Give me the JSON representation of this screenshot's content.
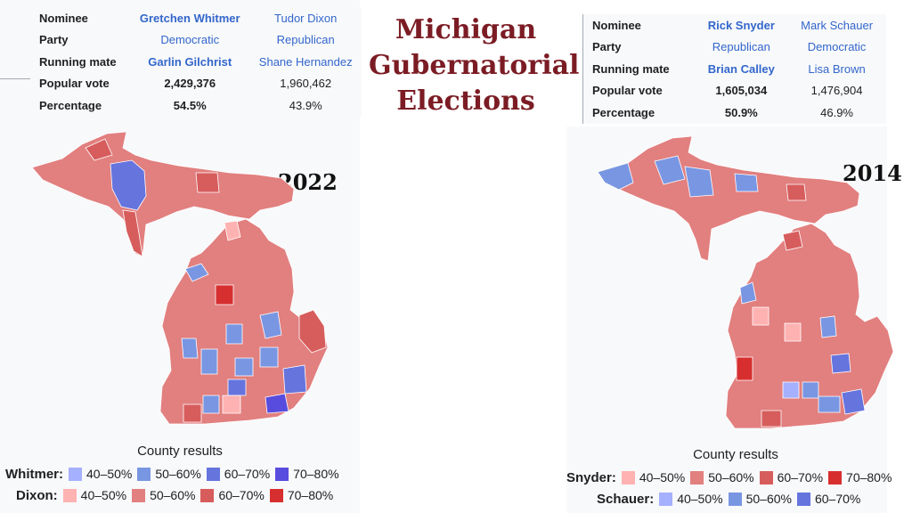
{
  "title": [
    "Michigan",
    "Gubernatorial",
    "Elections"
  ],
  "left": {
    "year": "2022",
    "infobox": {
      "rows": [
        {
          "label": "Nominee",
          "c1": "Gretchen Whitmer",
          "c2": "Tudor Dixon"
        },
        {
          "label": "Party",
          "c1": "Democratic",
          "c2": "Republican"
        },
        {
          "label": "Running mate",
          "c1": "Garlin Gilchrist",
          "c2": "Shane Hernandez"
        },
        {
          "label": "Popular vote",
          "c1": "2,429,376",
          "c2": "1,960,462"
        },
        {
          "label": "Percentage",
          "c1": "54.5%",
          "c2": "43.9%"
        }
      ]
    },
    "legend": {
      "title": "County results",
      "rows": [
        {
          "candidate": "Whitmer:",
          "items": [
            {
              "label": "40–50%",
              "color": "#a5b0ff"
            },
            {
              "label": "50–60%",
              "color": "#7996e2"
            },
            {
              "label": "60–70%",
              "color": "#6674de"
            },
            {
              "label": "70–80%",
              "color": "#584cde"
            }
          ]
        },
        {
          "candidate": "Dixon:",
          "items": [
            {
              "label": "40–50%",
              "color": "#ffb2b2"
            },
            {
              "label": "50–60%",
              "color": "#e27f7f"
            },
            {
              "label": "60–70%",
              "color": "#d75d5d"
            },
            {
              "label": "70–80%",
              "color": "#d72f30"
            }
          ]
        }
      ]
    }
  },
  "right": {
    "year": "2014",
    "infobox": {
      "rows": [
        {
          "label": "Nominee",
          "c1": "Rick Snyder",
          "c2": "Mark Schauer"
        },
        {
          "label": "Party",
          "c1": "Republican",
          "c2": "Democratic"
        },
        {
          "label": "Running mate",
          "c1": "Brian Calley",
          "c2": "Lisa Brown"
        },
        {
          "label": "Popular vote",
          "c1": "1,605,034",
          "c2": "1,476,904"
        },
        {
          "label": "Percentage",
          "c1": "50.9%",
          "c2": "46.9%"
        }
      ]
    },
    "legend": {
      "title": "County results",
      "rows": [
        {
          "candidate": "Snyder:",
          "items": [
            {
              "label": "40–50%",
              "color": "#ffb2b2"
            },
            {
              "label": "50–60%",
              "color": "#e27f7f"
            },
            {
              "label": "60–70%",
              "color": "#d75d5d"
            },
            {
              "label": "70–80%",
              "color": "#d72f30"
            }
          ]
        },
        {
          "candidate": "Schauer:",
          "items": [
            {
              "label": "40–50%",
              "color": "#a5b0ff"
            },
            {
              "label": "50–60%",
              "color": "#7996e2"
            },
            {
              "label": "60–70%",
              "color": "#6674de"
            }
          ]
        }
      ]
    }
  },
  "colors": {
    "title": "#7b1c24",
    "link": "#3366cc",
    "map_base": "#e27f7f"
  }
}
